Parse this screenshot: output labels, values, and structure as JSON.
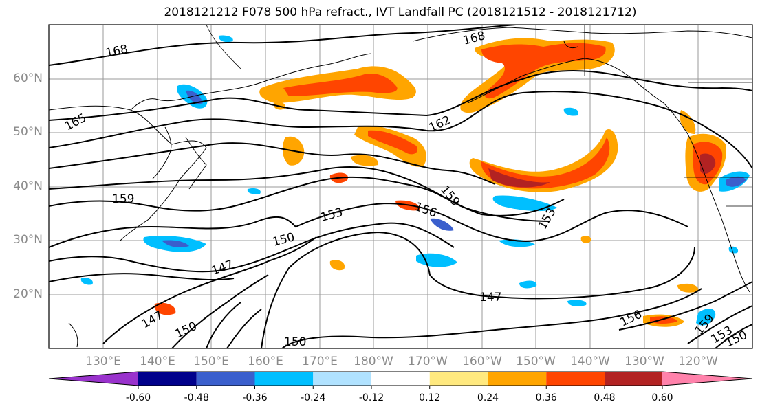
{
  "title": "2018121212 F078 500 hPa refract., IVT Landfall PC (2018121512 - 2018121712)",
  "lat_labels": [
    "60°N",
    "50°N",
    "40°N",
    "30°N",
    "20°N"
  ],
  "lon_labels": [
    "130°E",
    "140°E",
    "150°E",
    "160°E",
    "170°E",
    "180°W",
    "170°W",
    "160°W",
    "150°W",
    "140°W",
    "130°W",
    "120°W"
  ],
  "contour_labels": [
    "168",
    "168",
    "165",
    "162",
    "159",
    "159",
    "156",
    "153",
    "153",
    "150",
    "147",
    "147",
    "147",
    "150",
    "150",
    "156",
    "159",
    "153",
    "150"
  ],
  "colorbar": {
    "tick_labels": [
      "-0.60",
      "-0.48",
      "-0.36",
      "-0.24",
      "-0.12",
      "0.12",
      "0.24",
      "0.36",
      "0.48",
      "0.60"
    ],
    "colors": [
      "#9932cc",
      "#00008b",
      "#3a5fcd",
      "#00bfff",
      "#b0e2ff",
      "#ffffff",
      "#ffe97f",
      "#ffa500",
      "#ff4500",
      "#b22222",
      "#ff82ab"
    ]
  }
}
